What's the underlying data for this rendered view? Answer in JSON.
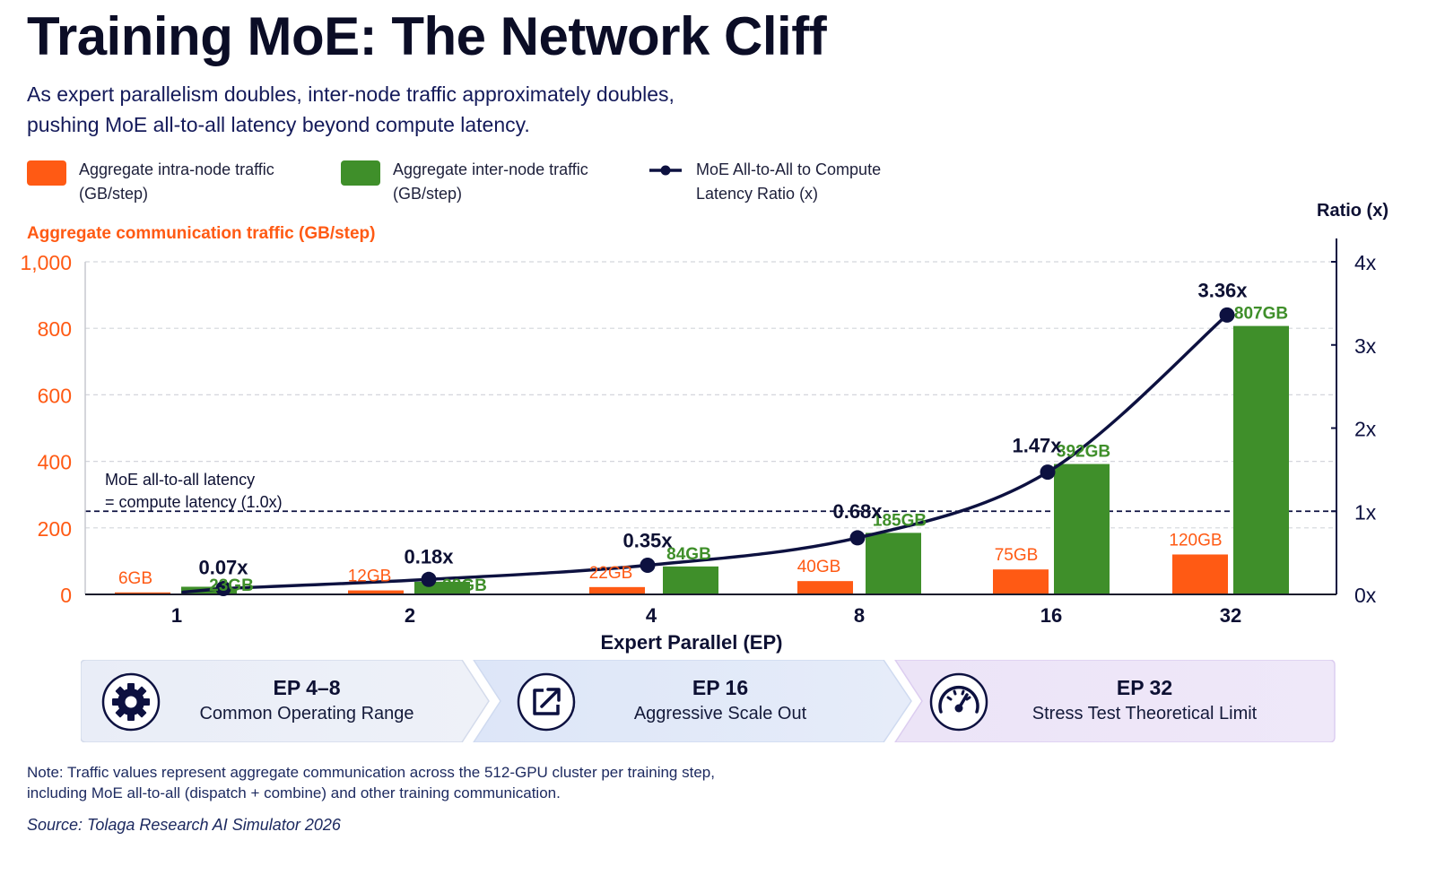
{
  "header": {
    "title": "Training MoE: The Network Cliff",
    "subtitle_line1": "As expert parallelism doubles, inter-node traffic approximately doubles,",
    "subtitle_line2": "pushing MoE all-to-all latency beyond compute latency."
  },
  "legend": [
    {
      "label_line1": "Aggregate intra-node traffic",
      "label_line2": "(GB/step)",
      "color": "#ff5a14"
    },
    {
      "label_line1": "Aggregate inter-node traffic",
      "label_line2": "(GB/step)",
      "color": "#3f8f2a"
    },
    {
      "label_line1": "MoE All-to-All to Compute",
      "label_line2": "Latency Ratio (x)",
      "color": "#0d1140"
    }
  ],
  "chart_data": {
    "type": "bar",
    "categories": [
      "1",
      "2",
      "4",
      "8",
      "16",
      "32"
    ],
    "xlabel": "Expert Parallel (EP)",
    "ylabel": "Aggregate communication traffic (GB/step)",
    "y2label": "Ratio (x)",
    "ylim": [
      0,
      1000
    ],
    "y2lim": [
      0,
      4
    ],
    "yticks": [
      "0",
      "200",
      "400",
      "600",
      "800",
      "1,000"
    ],
    "y2ticks": [
      "0x",
      "1x",
      "2x",
      "3x",
      "4x"
    ],
    "series": [
      {
        "name": "Aggregate intra-node traffic (GB/step)",
        "values": [
          6,
          12,
          22,
          40,
          75,
          120
        ],
        "labels": [
          "6GB",
          "12GB",
          "22GB",
          "40GB",
          "75GB",
          "120GB"
        ],
        "color": "#ff5a14"
      },
      {
        "name": "Aggregate inter-node traffic (GB/step)",
        "values": [
          23,
          38,
          84,
          185,
          392,
          807
        ],
        "labels": [
          "23GB",
          "38GB",
          "84GB",
          "185GB",
          "392GB",
          "807GB"
        ],
        "color": "#3f8f2a"
      },
      {
        "name": "MoE All-to-All to Compute Latency Ratio (x)",
        "values": [
          0.07,
          0.18,
          0.35,
          0.68,
          1.47,
          3.36
        ],
        "labels": [
          "0.07x",
          "0.18x",
          "0.35x",
          "0.68x",
          "1.47x",
          "3.36x"
        ],
        "color": "#0d1140",
        "axis": "right"
      }
    ],
    "reference_line": {
      "value": 1.0,
      "axis": "right",
      "label_line1": "MoE all-to-all latency",
      "label_line2": "= compute latency (1.0x)"
    },
    "grid": true
  },
  "panels": [
    {
      "title": "EP 4–8",
      "subtitle": "Common Operating Range",
      "icon": "gear-icon"
    },
    {
      "title": "EP 16",
      "subtitle": "Aggressive Scale Out",
      "icon": "expand-arrow-icon"
    },
    {
      "title": "EP 32",
      "subtitle": "Stress Test Theoretical Limit",
      "icon": "gauge-icon"
    }
  ],
  "footer": {
    "note_line1": "Note: Traffic values represent aggregate communication across the 512-GPU cluster per training step,",
    "note_line2": "including MoE all-to-all (dispatch + combine) and other training communication.",
    "source": "Source: Tolaga Research AI Simulator 2026"
  }
}
